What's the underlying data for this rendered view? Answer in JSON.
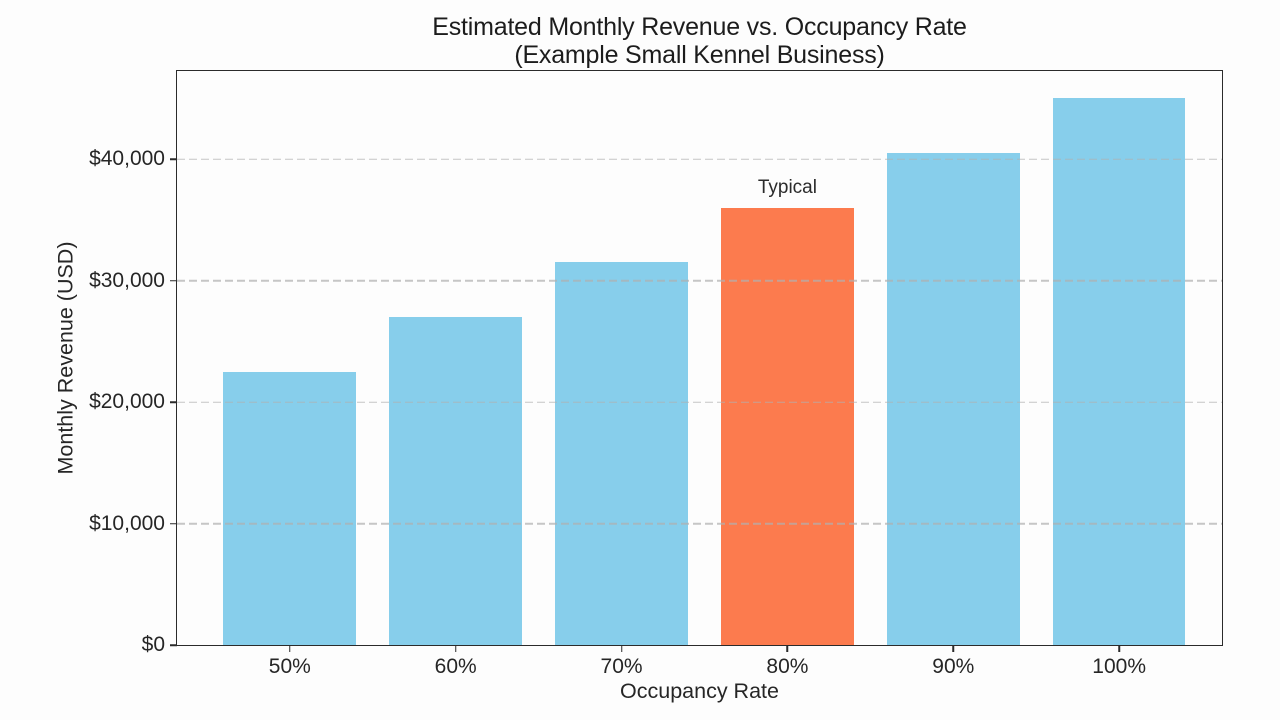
{
  "chart_data": {
    "type": "bar",
    "title": "Estimated Monthly Revenue vs. Occupancy Rate",
    "subtitle": "(Example Small Kennel Business)",
    "xlabel": "Occupancy Rate",
    "ylabel": "Monthly Revenue (USD)",
    "categories": [
      "50%",
      "60%",
      "70%",
      "80%",
      "90%",
      "100%"
    ],
    "values": [
      22500,
      27000,
      31500,
      36000,
      40500,
      45000
    ],
    "highlight_index": 3,
    "annotation": "Typical",
    "ylim": [
      0,
      47250
    ],
    "yticks": [
      {
        "value": 0,
        "label": "$0"
      },
      {
        "value": 10000,
        "label": "$10,000"
      },
      {
        "value": 20000,
        "label": "$20,000"
      },
      {
        "value": 30000,
        "label": "$30,000"
      },
      {
        "value": 40000,
        "label": "$40,000"
      }
    ],
    "grid": "y-axis dashed, drawn above bars",
    "legend": "none",
    "colors": {
      "bar": "#87CEEB",
      "highlight": "#FC7B4E",
      "grid": "#b0b0b0",
      "spine": "#2b2b2b",
      "text": "#262626",
      "background": "#fdfdfd"
    }
  }
}
